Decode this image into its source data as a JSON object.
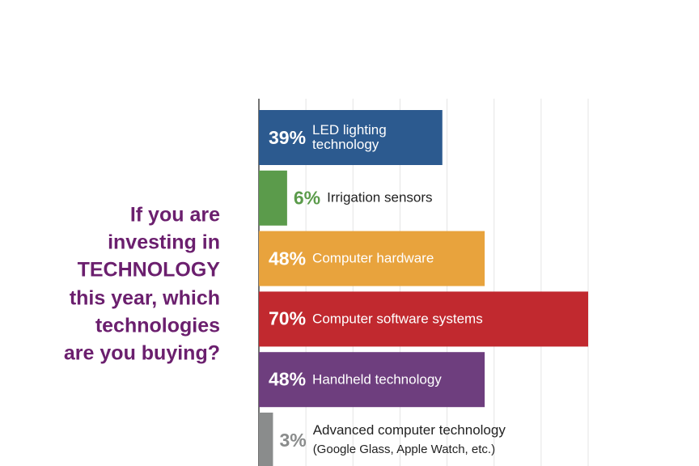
{
  "chart_data": {
    "type": "bar",
    "orientation": "horizontal",
    "title": [
      "If you are",
      "investing in",
      "TECHNOLOGY",
      "this year, which",
      "technologies",
      "are you buying?"
    ],
    "categories": [
      "LED lighting technology",
      "Irrigation sensors",
      "Computer hardware",
      "Computer software systems",
      "Handheld technology",
      "Advanced computer technology"
    ],
    "sublabels": [
      null,
      null,
      null,
      null,
      null,
      "(Google Glass, Apple Watch, etc.)"
    ],
    "values": [
      39,
      6,
      48,
      70,
      48,
      3
    ],
    "value_labels": [
      "39%",
      "6%",
      "48%",
      "70%",
      "48%",
      "3%"
    ],
    "colors": [
      "#2c5a8f",
      "#5b9b4b",
      "#e8a33d",
      "#c1292f",
      "#6e3e7e",
      "#8a8c8c"
    ],
    "xlim": [
      0,
      70
    ],
    "xticks": [
      0,
      10,
      20,
      30,
      40,
      50,
      60,
      70
    ],
    "grid": true
  }
}
